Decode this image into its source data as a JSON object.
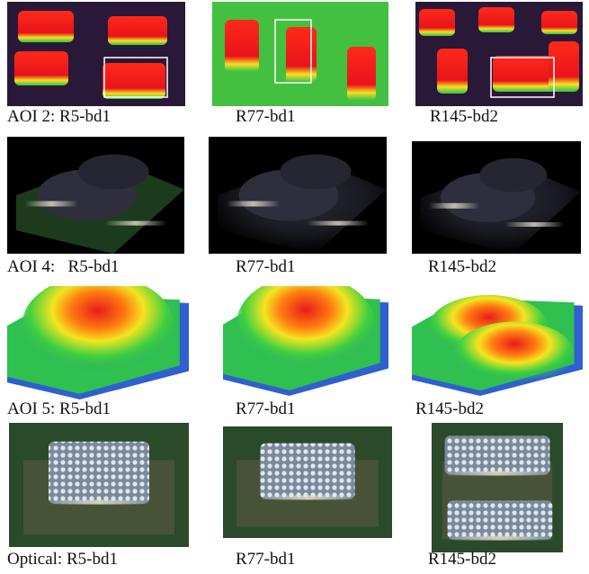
{
  "figure": {
    "rows": [
      {
        "captions": [
          "AOI 2: R5-bd1",
          "R77-bd1",
          "R145-bd2"
        ]
      },
      {
        "captions": [
          "AOI 4:   R5-bd1",
          "R77-bd1",
          "R145-bd2"
        ]
      },
      {
        "captions": [
          "AOI 5: R5-bd1",
          "R77-bd1",
          "R145-bd2"
        ]
      },
      {
        "captions": [
          "Optical: R5-bd1",
          "R77-bd1",
          "R145-bd2"
        ]
      }
    ]
  }
}
